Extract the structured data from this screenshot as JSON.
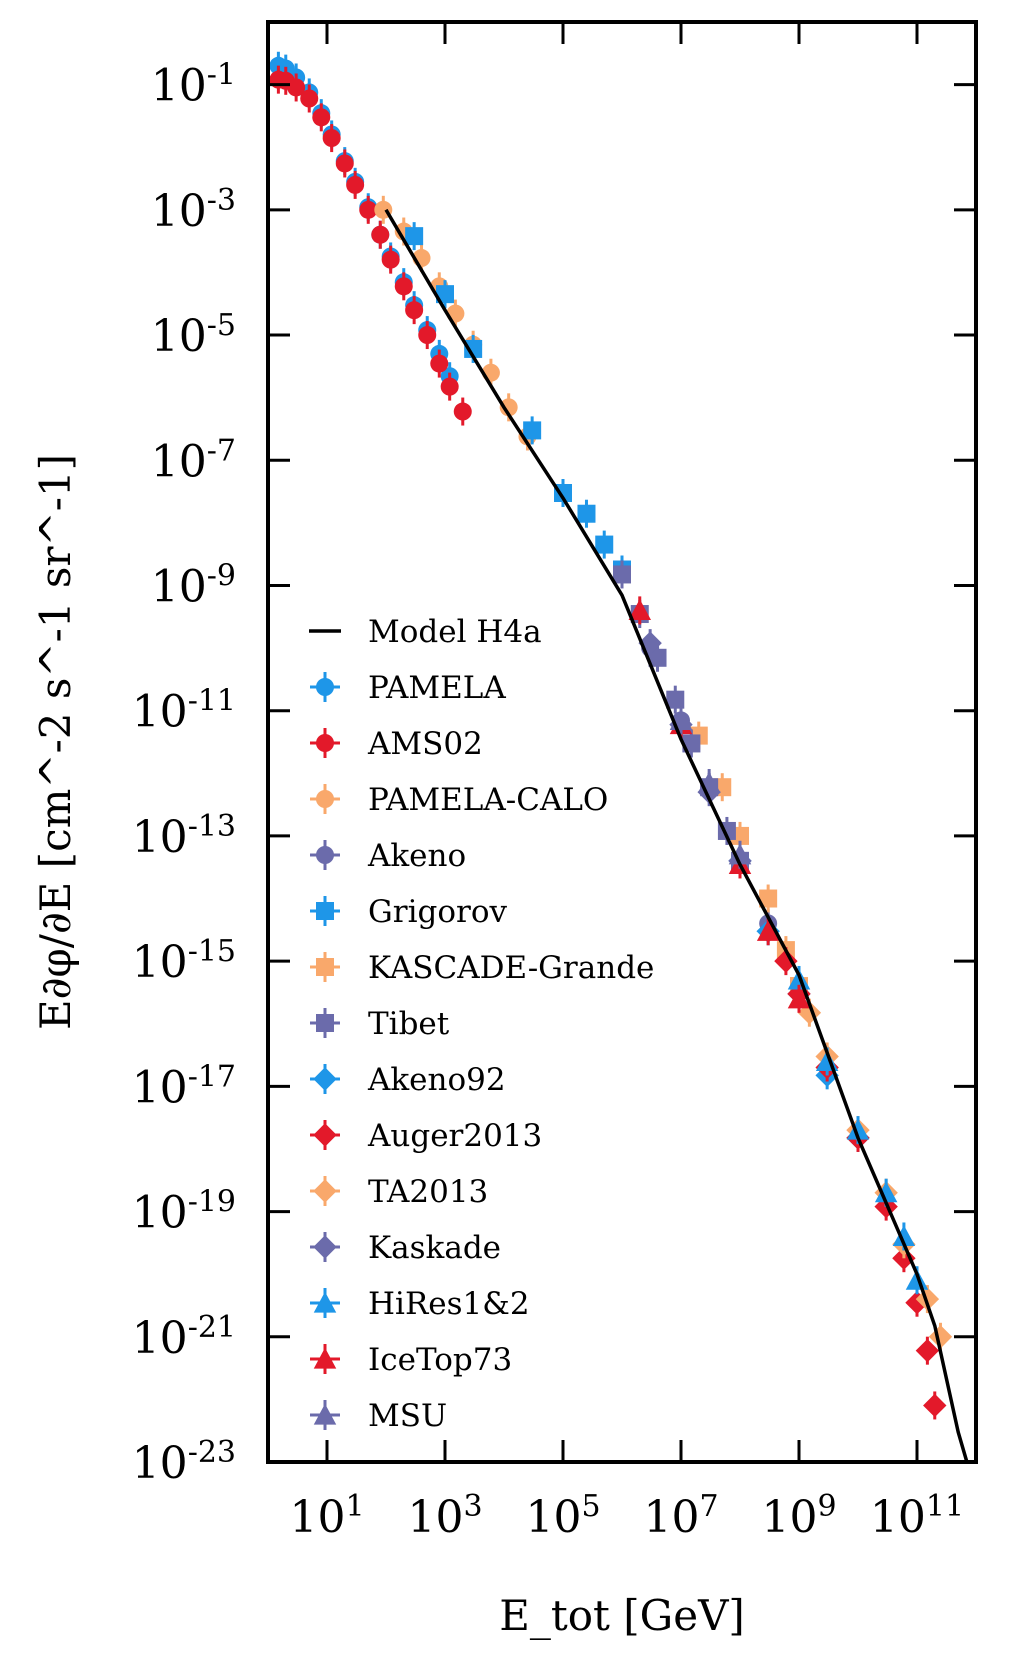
{
  "chart_data": {
    "type": "scatter",
    "xlabel": "E_tot [GeV]",
    "ylabel": "E∂φ/∂E [cm^-2 s^-1 sr^-1]",
    "xscale": "log",
    "yscale": "log",
    "xlim": [
      1,
      1000000000000.0
    ],
    "ylim": [
      1e-23,
      1
    ],
    "x_ticks": [
      {
        "base": "10",
        "exp": "1",
        "value": 10
      },
      {
        "base": "10",
        "exp": "3",
        "value": 1000
      },
      {
        "base": "10",
        "exp": "5",
        "value": 100000
      },
      {
        "base": "10",
        "exp": "7",
        "value": 10000000
      },
      {
        "base": "10",
        "exp": "9",
        "value": 1000000000
      },
      {
        "base": "10",
        "exp": "11",
        "value": 100000000000
      }
    ],
    "y_ticks": [
      {
        "base": "10",
        "exp": "-1",
        "value": 0.1
      },
      {
        "base": "10",
        "exp": "-3",
        "value": 0.001
      },
      {
        "base": "10",
        "exp": "-5",
        "value": 1e-05
      },
      {
        "base": "10",
        "exp": "-7",
        "value": 1e-07
      },
      {
        "base": "10",
        "exp": "-9",
        "value": 1e-09
      },
      {
        "base": "10",
        "exp": "-11",
        "value": 1e-11
      },
      {
        "base": "10",
        "exp": "-13",
        "value": 1e-13
      },
      {
        "base": "10",
        "exp": "-15",
        "value": 1e-15
      },
      {
        "base": "10",
        "exp": "-17",
        "value": 1e-17
      },
      {
        "base": "10",
        "exp": "-19",
        "value": 1e-19
      },
      {
        "base": "10",
        "exp": "-21",
        "value": 1e-21
      },
      {
        "base": "10",
        "exp": "-23",
        "value": 1e-23
      }
    ],
    "legend_position": "left",
    "model": {
      "name": "Model H4a",
      "color": "#000000",
      "points": [
        [
          100,
          0.001
        ],
        [
          1000,
          2.5e-05
        ],
        [
          10000,
          7e-07
        ],
        [
          100000,
          2.5e-08
        ],
        [
          1000000,
          7e-10
        ],
        [
          10000000,
          3.5e-12
        ],
        [
          100000000,
          3.5e-14
        ],
        [
          1000000000,
          6e-16
        ],
        [
          10000000000,
          1.5e-18
        ],
        [
          100000000000,
          1e-20
        ],
        [
          200000000000,
          1.5e-21
        ],
        [
          500000000000,
          3e-23
        ],
        [
          700000000000,
          1e-24
        ]
      ]
    },
    "series": [
      {
        "name": "PAMELA",
        "color": "#1e96e8",
        "marker": "circle",
        "points": [
          [
            1.5,
            0.2
          ],
          [
            2,
            0.18
          ],
          [
            3,
            0.13
          ],
          [
            5,
            0.075
          ],
          [
            8,
            0.035
          ],
          [
            12,
            0.016
          ],
          [
            20,
            0.006
          ],
          [
            30,
            0.0028
          ],
          [
            50,
            0.0011
          ],
          [
            80,
            0.0004
          ],
          [
            120,
            0.00018
          ],
          [
            200,
            7e-05
          ],
          [
            300,
            3e-05
          ],
          [
            500,
            1.2e-05
          ],
          [
            800,
            5e-06
          ],
          [
            1200,
            2.2e-06
          ]
        ]
      },
      {
        "name": "AMS02",
        "color": "#e3192a",
        "marker": "circle",
        "points": [
          [
            1.5,
            0.12
          ],
          [
            2,
            0.115
          ],
          [
            3,
            0.09
          ],
          [
            5,
            0.06
          ],
          [
            8,
            0.03
          ],
          [
            12,
            0.014
          ],
          [
            20,
            0.0055
          ],
          [
            30,
            0.0025
          ],
          [
            50,
            0.001
          ],
          [
            80,
            0.0004
          ],
          [
            120,
            0.00016
          ],
          [
            200,
            6e-05
          ],
          [
            300,
            2.5e-05
          ],
          [
            500,
            1e-05
          ],
          [
            800,
            3.5e-06
          ],
          [
            1200,
            1.5e-06
          ],
          [
            2000,
            6e-07
          ]
        ]
      },
      {
        "name": "PAMELA-CALO",
        "color": "#f9a86b",
        "marker": "circle",
        "points": [
          [
            90,
            0.001
          ],
          [
            200,
            0.00045
          ],
          [
            400,
            0.00017
          ],
          [
            800,
            6e-05
          ],
          [
            1500,
            2.2e-05
          ],
          [
            3000,
            7e-06
          ],
          [
            6000,
            2.5e-06
          ],
          [
            12000,
            7e-07
          ],
          [
            25000,
            2.4e-07
          ]
        ]
      },
      {
        "name": "Akeno",
        "color": "#6b6bab",
        "marker": "circle",
        "points": [
          [
            3000000,
            1e-10
          ],
          [
            10000000,
            7e-12
          ],
          [
            30000000,
            6e-13
          ],
          [
            100000000,
            4e-14
          ],
          [
            300000000,
            4e-15
          ]
        ]
      },
      {
        "name": "Grigorov",
        "color": "#1e96e8",
        "marker": "square",
        "points": [
          [
            300,
            0.00038
          ],
          [
            1000,
            4.5e-05
          ],
          [
            3000,
            6e-06
          ],
          [
            30000,
            3e-07
          ],
          [
            100000,
            3e-08
          ],
          [
            250000,
            1.4e-08
          ],
          [
            500000,
            4.5e-09
          ],
          [
            1000000,
            1.8e-09
          ]
        ]
      },
      {
        "name": "KASCADE-Grande",
        "color": "#f9a86b",
        "marker": "square",
        "points": [
          [
            20000000,
            4e-12
          ],
          [
            50000000,
            6e-13
          ],
          [
            100000000,
            1e-13
          ],
          [
            300000000,
            1e-14
          ],
          [
            600000000,
            1.5e-15
          ],
          [
            1000000000,
            4e-16
          ]
        ]
      },
      {
        "name": "Tibet",
        "color": "#6b6bab",
        "marker": "square",
        "points": [
          [
            1000000,
            1.5e-09
          ],
          [
            2000000,
            3.5e-10
          ],
          [
            4000000,
            7e-11
          ],
          [
            8000000,
            1.5e-11
          ],
          [
            15000000,
            3e-12
          ],
          [
            30000000,
            6e-13
          ],
          [
            60000000,
            1.2e-13
          ],
          [
            100000000,
            4e-14
          ]
        ]
      },
      {
        "name": "Akeno92",
        "color": "#1e96e8",
        "marker": "diamond",
        "points": [
          [
            100000000,
            4e-14
          ],
          [
            300000000,
            3e-15
          ],
          [
            1000000000,
            3e-16
          ],
          [
            3000000000,
            1.5e-17
          ],
          [
            10000000000,
            1.5e-18
          ]
        ]
      },
      {
        "name": "Auger2013",
        "color": "#e3192a",
        "marker": "diamond",
        "points": [
          [
            600000000,
            1e-15
          ],
          [
            1000000000,
            3e-16
          ],
          [
            3000000000,
            2e-17
          ],
          [
            10000000000,
            1.5e-18
          ],
          [
            30000000000,
            1.2e-19
          ],
          [
            60000000000,
            1.8e-20
          ],
          [
            100000000000,
            3.5e-21
          ],
          [
            150000000000,
            6e-22
          ],
          [
            200000000000,
            8e-23
          ]
        ]
      },
      {
        "name": "TA2013",
        "color": "#f9a86b",
        "marker": "diamond",
        "points": [
          [
            1500000000,
            1.5e-16
          ],
          [
            3000000000,
            3e-17
          ],
          [
            10000000000,
            2e-18
          ],
          [
            30000000000,
            2e-19
          ],
          [
            60000000000,
            3e-20
          ],
          [
            150000000000,
            4e-21
          ],
          [
            250000000000,
            1e-21
          ]
        ]
      },
      {
        "name": "Kaskade",
        "color": "#6b6bab",
        "marker": "diamond",
        "points": [
          [
            3000000,
            1.2e-10
          ],
          [
            10000000,
            6e-12
          ],
          [
            30000000,
            5e-13
          ],
          [
            100000000,
            4e-14
          ]
        ]
      },
      {
        "name": "HiRes1&2",
        "color": "#1e96e8",
        "marker": "triangle",
        "points": [
          [
            1000000000,
            5e-16
          ],
          [
            3000000000,
            2.5e-17
          ],
          [
            10000000000,
            2e-18
          ],
          [
            30000000000,
            2e-19
          ],
          [
            60000000000,
            4e-20
          ],
          [
            100000000000,
            8e-21
          ]
        ]
      },
      {
        "name": "IceTop73",
        "color": "#e3192a",
        "marker": "triangle",
        "points": [
          [
            2000000,
            4e-10
          ],
          [
            10000000,
            6e-12
          ],
          [
            100000000,
            3.5e-14
          ],
          [
            300000000,
            3e-15
          ],
          [
            1000000000,
            2.5e-16
          ]
        ]
      },
      {
        "name": "MSU",
        "color": "#6b6bab",
        "marker": "triangle",
        "points": [
          [
            10000000,
            7e-12
          ],
          [
            30000000,
            7e-13
          ],
          [
            100000000,
            5e-14
          ]
        ]
      }
    ]
  }
}
